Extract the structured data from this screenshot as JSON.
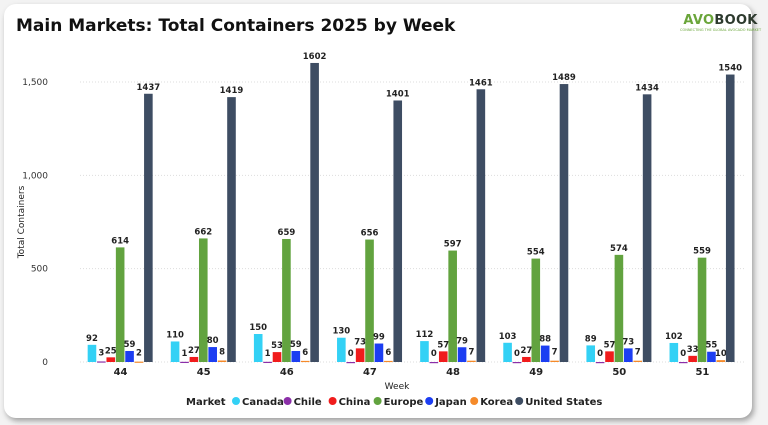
{
  "logo": {
    "name_accent": "AVO",
    "name_rest": "BOOK",
    "tagline": "CONNECTING THE GLOBAL AVOCADO MARKET"
  },
  "chart_data": {
    "type": "bar",
    "title": "Main Markets: Total Containers 2025 by Week",
    "xlabel": "Week",
    "ylabel": "Total Containers",
    "ylim": [
      0,
      1650
    ],
    "yticks": [
      0,
      500,
      1000,
      1500
    ],
    "ytick_labels": [
      "0",
      "500",
      "1,000",
      "1,500"
    ],
    "grid": true,
    "legend_title": "Market",
    "legend_placement": "bottom",
    "categories": [
      "44",
      "45",
      "46",
      "47",
      "48",
      "49",
      "50",
      "51"
    ],
    "series": [
      {
        "name": "Canada",
        "color": "#33d1f5",
        "values": [
          92,
          110,
          150,
          130,
          112,
          103,
          89,
          102
        ]
      },
      {
        "name": "Chile",
        "color": "#8b2fa8",
        "values": [
          3,
          1,
          1,
          0,
          0,
          0,
          0,
          0
        ]
      },
      {
        "name": "China",
        "color": "#f01c1c",
        "values": [
          25,
          27,
          53,
          73,
          57,
          27,
          57,
          33
        ]
      },
      {
        "name": "Europe",
        "color": "#62a33f",
        "values": [
          614,
          662,
          659,
          656,
          597,
          554,
          574,
          559
        ]
      },
      {
        "name": "Japan",
        "color": "#1c3ef2",
        "values": [
          59,
          80,
          59,
          99,
          79,
          88,
          73,
          55
        ]
      },
      {
        "name": "Korea",
        "color": "#f58a2a",
        "values": [
          2,
          8,
          6,
          6,
          7,
          7,
          7,
          10
        ]
      },
      {
        "name": "United States",
        "color": "#3e4d63",
        "values": [
          1437,
          1419,
          1602,
          1401,
          1461,
          1489,
          1434,
          1540
        ]
      }
    ]
  }
}
